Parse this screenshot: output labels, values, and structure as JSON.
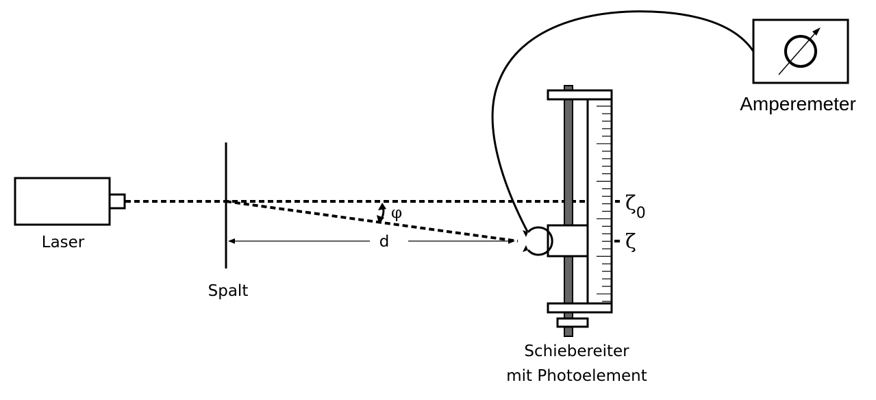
{
  "labels": {
    "laser": "Laser",
    "slit": "Spalt",
    "distance": "d",
    "angle": "φ",
    "zeta0": "ζ",
    "zeta0_subscript": "0",
    "zeta": "ζ",
    "slider_line1": "Schiebereiter",
    "slider_line2": "mit Photoelement",
    "ammeter": "Amperemeter"
  },
  "colors": {
    "stroke": "#000000",
    "rail": "#666666",
    "background": "#ffffff"
  },
  "ruler_ticks": 27
}
